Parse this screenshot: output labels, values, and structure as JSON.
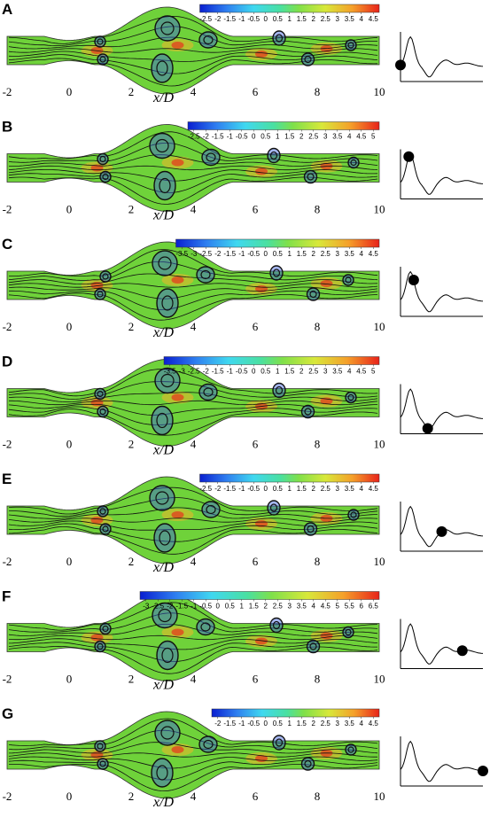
{
  "figure": {
    "x_axis": {
      "label": "x/D",
      "ticks": [
        "-2",
        "0",
        "2",
        "4",
        "6",
        "8",
        "10"
      ]
    },
    "colors": {
      "stream": "#111111",
      "base": "#6fd23a"
    }
  },
  "chart_data": [
    {
      "panel": "A",
      "type": "heatmap",
      "xlabel": "x/D",
      "xticks": [
        -2,
        0,
        2,
        4,
        6,
        8,
        10
      ],
      "colorbar": {
        "ticks": [
          "-2.5",
          "-2",
          "-1.5",
          "-1",
          "-0.5",
          "0",
          "0.5",
          "1",
          "1.5",
          "2",
          "2.5",
          "3",
          "3.5",
          "4",
          "4.5"
        ]
      },
      "waveform_marker_phase": 0.0
    },
    {
      "panel": "B",
      "type": "heatmap",
      "xlabel": "x/D",
      "xticks": [
        -2,
        0,
        2,
        4,
        6,
        8,
        10
      ],
      "colorbar": {
        "ticks": [
          "-2.5",
          "-2",
          "-1.5",
          "-1",
          "-0.5",
          "0",
          "0.5",
          "1",
          "1.5",
          "2",
          "2.5",
          "3",
          "3.5",
          "4",
          "4.5",
          "5"
        ]
      },
      "waveform_marker_phase": 0.1
    },
    {
      "panel": "C",
      "type": "heatmap",
      "xlabel": "x/D",
      "xticks": [
        -2,
        0,
        2,
        4,
        6,
        8,
        10
      ],
      "colorbar": {
        "ticks": [
          "-3.5",
          "-3",
          "-2.5",
          "-2",
          "-1.5",
          "-1",
          "-0.5",
          "0",
          "0.5",
          "1",
          "1.5",
          "2",
          "2.5",
          "3",
          "3.5",
          "4",
          "4.5"
        ]
      },
      "waveform_marker_phase": 0.16
    },
    {
      "panel": "D",
      "type": "heatmap",
      "xlabel": "x/D",
      "xticks": [
        -2,
        0,
        2,
        4,
        6,
        8,
        10
      ],
      "colorbar": {
        "ticks": [
          "-3.5",
          "-3",
          "-2.5",
          "-2",
          "-1.5",
          "-1",
          "-0.5",
          "0",
          "0.5",
          "1",
          "1.5",
          "2",
          "2.5",
          "3",
          "3.5",
          "4",
          "4.5",
          "5"
        ]
      },
      "waveform_marker_phase": 0.33
    },
    {
      "panel": "E",
      "type": "heatmap",
      "xlabel": "x/D",
      "xticks": [
        -2,
        0,
        2,
        4,
        6,
        8,
        10
      ],
      "colorbar": {
        "ticks": [
          "-2.5",
          "-2",
          "-1.5",
          "-1",
          "-0.5",
          "0",
          "0.5",
          "1",
          "1.5",
          "2",
          "2.5",
          "3",
          "3.5",
          "4",
          "4.5"
        ]
      },
      "waveform_marker_phase": 0.5
    },
    {
      "panel": "F",
      "type": "heatmap",
      "xlabel": "x/D",
      "xticks": [
        -2,
        0,
        2,
        4,
        6,
        8,
        10
      ],
      "colorbar": {
        "ticks": [
          "-3",
          "-2.5",
          "-2",
          "-1.5",
          "-1",
          "-0.5",
          "0",
          "0.5",
          "1",
          "1.5",
          "2",
          "2.5",
          "3",
          "3.5",
          "4",
          "4.5",
          "5",
          "5.5",
          "6",
          "6.5"
        ]
      },
      "waveform_marker_phase": 0.75
    },
    {
      "panel": "G",
      "type": "heatmap",
      "xlabel": "x/D",
      "xticks": [
        -2,
        0,
        2,
        4,
        6,
        8,
        10
      ],
      "colorbar": {
        "ticks": [
          "-2",
          "-1.5",
          "-1",
          "-0.5",
          "0",
          "0.5",
          "1",
          "1.5",
          "2",
          "2.5",
          "3",
          "3.5",
          "4",
          "4.5"
        ]
      },
      "waveform_marker_phase": 1.0
    }
  ]
}
